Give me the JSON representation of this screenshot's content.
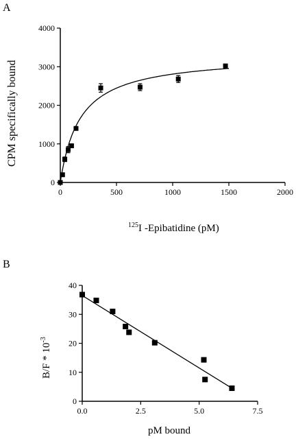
{
  "chart_data": [
    {
      "panel": "A",
      "type": "scatter",
      "xlabel": "-Epibatidine (pM)",
      "xlabel_sup": "125",
      "xlabel_iso": "I",
      "ylabel": "CPM specifically bound",
      "xlim": [
        0,
        2000
      ],
      "ylim": [
        0,
        4000
      ],
      "xticks": [
        0,
        500,
        1000,
        1500,
        2000
      ],
      "yticks": [
        0,
        1000,
        2000,
        3000,
        4000
      ],
      "grid": false,
      "points": [
        {
          "x": 0,
          "y": 0,
          "err": 0
        },
        {
          "x": 20,
          "y": 200,
          "err": 0
        },
        {
          "x": 40,
          "y": 600,
          "err": 60
        },
        {
          "x": 70,
          "y": 850,
          "err": 80
        },
        {
          "x": 100,
          "y": 950,
          "err": 40
        },
        {
          "x": 140,
          "y": 1400,
          "err": 30
        },
        {
          "x": 360,
          "y": 2450,
          "err": 110
        },
        {
          "x": 710,
          "y": 2470,
          "err": 90
        },
        {
          "x": 1050,
          "y": 2680,
          "err": 90
        },
        {
          "x": 1470,
          "y": 3020,
          "err": 0
        }
      ],
      "fit": {
        "type": "saturation",
        "bmax": 3300,
        "kd": 175
      }
    },
    {
      "panel": "B",
      "type": "scatter",
      "xlabel": "pM bound",
      "ylabel": "B/F * 10",
      "ylabel_sup": "-3",
      "xlim": [
        0,
        7.5
      ],
      "ylim": [
        0,
        40
      ],
      "xticks": [
        "0.0",
        "2.5",
        "5.0",
        "7.5"
      ],
      "yticks": [
        0,
        10,
        20,
        30,
        40
      ],
      "grid": false,
      "points": [
        {
          "x": 0.0,
          "y": 36.8
        },
        {
          "x": 0.6,
          "y": 34.8
        },
        {
          "x": 1.3,
          "y": 31.0
        },
        {
          "x": 1.85,
          "y": 25.8
        },
        {
          "x": 2.0,
          "y": 23.8
        },
        {
          "x": 3.1,
          "y": 20.2
        },
        {
          "x": 5.2,
          "y": 14.3
        },
        {
          "x": 5.25,
          "y": 7.5
        },
        {
          "x": 6.4,
          "y": 4.5
        }
      ],
      "fit": {
        "type": "linear",
        "x0": 0.0,
        "y0": 36.5,
        "x1": 6.5,
        "y1": 4.0
      }
    }
  ]
}
